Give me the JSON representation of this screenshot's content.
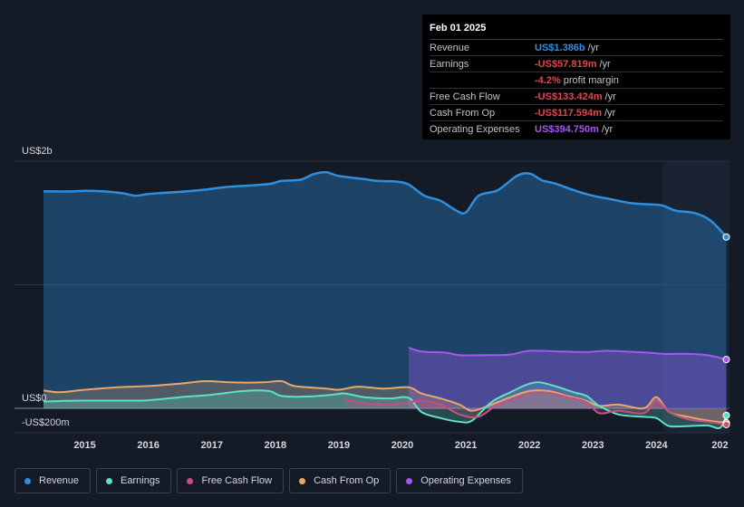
{
  "tooltip": {
    "date": "Feb 01 2025",
    "rows": [
      {
        "label": "Revenue",
        "value": "US$1.386b",
        "unit": "/yr",
        "color": "#2e8fe0"
      },
      {
        "label": "Earnings",
        "value": "-US$57.819m",
        "unit": "/yr",
        "color": "#e8434b"
      },
      {
        "label": "",
        "value": "-4.2%",
        "unit": "profit margin",
        "color": "#e8434b"
      },
      {
        "label": "Free Cash Flow",
        "value": "-US$133.424m",
        "unit": "/yr",
        "color": "#e8434b"
      },
      {
        "label": "Cash From Op",
        "value": "-US$117.594m",
        "unit": "/yr",
        "color": "#e8434b"
      },
      {
        "label": "Operating Expenses",
        "value": "US$394.750m",
        "unit": "/yr",
        "color": "#a557f2"
      }
    ]
  },
  "legend": [
    {
      "label": "Revenue",
      "color": "#2e8fe0"
    },
    {
      "label": "Earnings",
      "color": "#5ce0c8"
    },
    {
      "label": "Free Cash Flow",
      "color": "#c4507f"
    },
    {
      "label": "Cash From Op",
      "color": "#e8a86a"
    },
    {
      "label": "Operating Expenses",
      "color": "#a557f2"
    }
  ],
  "chart_data": {
    "type": "area",
    "title": "",
    "xlabel": "",
    "ylabel": "",
    "y_tick_labels": [
      "US$2b",
      "US$0",
      "-US$200m"
    ],
    "x_tick_labels": [
      "2015",
      "2016",
      "2017",
      "2018",
      "2019",
      "2020",
      "2021",
      "2022",
      "2023",
      "2024",
      "202"
    ],
    "ylim": [
      -200,
      2000
    ],
    "xlim": [
      2014.35,
      2025.15
    ],
    "forecast_start": 2024.1,
    "series": [
      {
        "name": "Revenue",
        "color": "#2e8fe0",
        "x": [
          2014.35,
          2014.8,
          2015.0,
          2015.3,
          2015.6,
          2015.8,
          2016.0,
          2016.3,
          2016.6,
          2016.9,
          2017.2,
          2017.5,
          2017.9,
          2018.1,
          2018.4,
          2018.6,
          2018.8,
          2019.0,
          2019.4,
          2019.6,
          2019.9,
          2020.1,
          2020.35,
          2020.6,
          2020.85,
          2021.0,
          2021.2,
          2021.5,
          2021.8,
          2022.0,
          2022.2,
          2022.4,
          2022.7,
          2023.0,
          2023.3,
          2023.6,
          2023.9,
          2024.1,
          2024.3,
          2024.6,
          2024.85,
          2025.1
        ],
        "values": [
          1755,
          1755,
          1760,
          1755,
          1740,
          1720,
          1735,
          1745,
          1755,
          1770,
          1790,
          1800,
          1815,
          1840,
          1850,
          1895,
          1910,
          1880,
          1855,
          1840,
          1835,
          1810,
          1720,
          1680,
          1600,
          1585,
          1720,
          1765,
          1880,
          1900,
          1845,
          1820,
          1765,
          1720,
          1690,
          1660,
          1650,
          1640,
          1600,
          1580,
          1520,
          1386
        ]
      },
      {
        "name": "Earnings",
        "color": "#5ce0c8",
        "x": [
          2014.35,
          2014.7,
          2015.0,
          2015.5,
          2016.0,
          2016.5,
          2017.0,
          2017.5,
          2017.9,
          2018.1,
          2018.5,
          2018.9,
          2019.1,
          2019.4,
          2019.8,
          2020.1,
          2020.3,
          2020.6,
          2020.9,
          2021.1,
          2021.4,
          2021.7,
          2021.95,
          2022.15,
          2022.4,
          2022.7,
          2022.9,
          2023.1,
          2023.4,
          2023.8,
          2024.0,
          2024.2,
          2024.5,
          2024.8,
          2025.0,
          2025.1
        ],
        "values": [
          55,
          60,
          62,
          62,
          65,
          90,
          110,
          140,
          140,
          100,
          95,
          110,
          120,
          90,
          80,
          85,
          -30,
          -80,
          -110,
          -100,
          50,
          130,
          190,
          210,
          180,
          130,
          100,
          20,
          -50,
          -70,
          -80,
          -145,
          -145,
          -140,
          -160,
          -58
        ]
      },
      {
        "name": "Free Cash Flow",
        "color": "#c4507f",
        "x": [
          2019.1,
          2019.4,
          2019.8,
          2020.1,
          2020.3,
          2020.6,
          2020.9,
          2021.2,
          2021.5,
          2021.8,
          2022.0,
          2022.3,
          2022.6,
          2022.9,
          2023.1,
          2023.4,
          2023.8,
          2024.0,
          2024.2,
          2024.5,
          2024.8,
          2025.1
        ],
        "values": [
          70,
          40,
          30,
          50,
          60,
          30,
          -50,
          -70,
          30,
          80,
          120,
          125,
          90,
          50,
          -40,
          -20,
          -40,
          60,
          -30,
          -90,
          -110,
          -133
        ]
      },
      {
        "name": "Cash From Op",
        "color": "#e8a86a",
        "x": [
          2014.35,
          2014.6,
          2015.0,
          2015.5,
          2016.0,
          2016.5,
          2016.9,
          2017.3,
          2017.8,
          2018.1,
          2018.3,
          2018.8,
          2019.0,
          2019.3,
          2019.7,
          2020.1,
          2020.3,
          2020.6,
          2020.9,
          2021.1,
          2021.4,
          2021.7,
          2022.0,
          2022.3,
          2022.6,
          2022.9,
          2023.1,
          2023.4,
          2023.8,
          2024.0,
          2024.2,
          2024.5,
          2024.8,
          2025.1
        ],
        "values": [
          145,
          130,
          150,
          170,
          180,
          200,
          220,
          210,
          210,
          220,
          180,
          160,
          150,
          175,
          160,
          170,
          120,
          80,
          30,
          -20,
          30,
          90,
          140,
          140,
          100,
          60,
          20,
          30,
          0,
          90,
          -30,
          -70,
          -100,
          -118
        ]
      },
      {
        "name": "Operating Expenses",
        "color": "#a557f2",
        "x": [
          2020.1,
          2020.3,
          2020.7,
          2020.9,
          2021.3,
          2021.7,
          2022.0,
          2022.5,
          2022.9,
          2023.2,
          2023.5,
          2023.9,
          2024.1,
          2024.5,
          2024.8,
          2025.1
        ],
        "values": [
          490,
          460,
          450,
          430,
          430,
          435,
          465,
          460,
          455,
          465,
          460,
          450,
          440,
          440,
          430,
          395
        ]
      }
    ]
  }
}
